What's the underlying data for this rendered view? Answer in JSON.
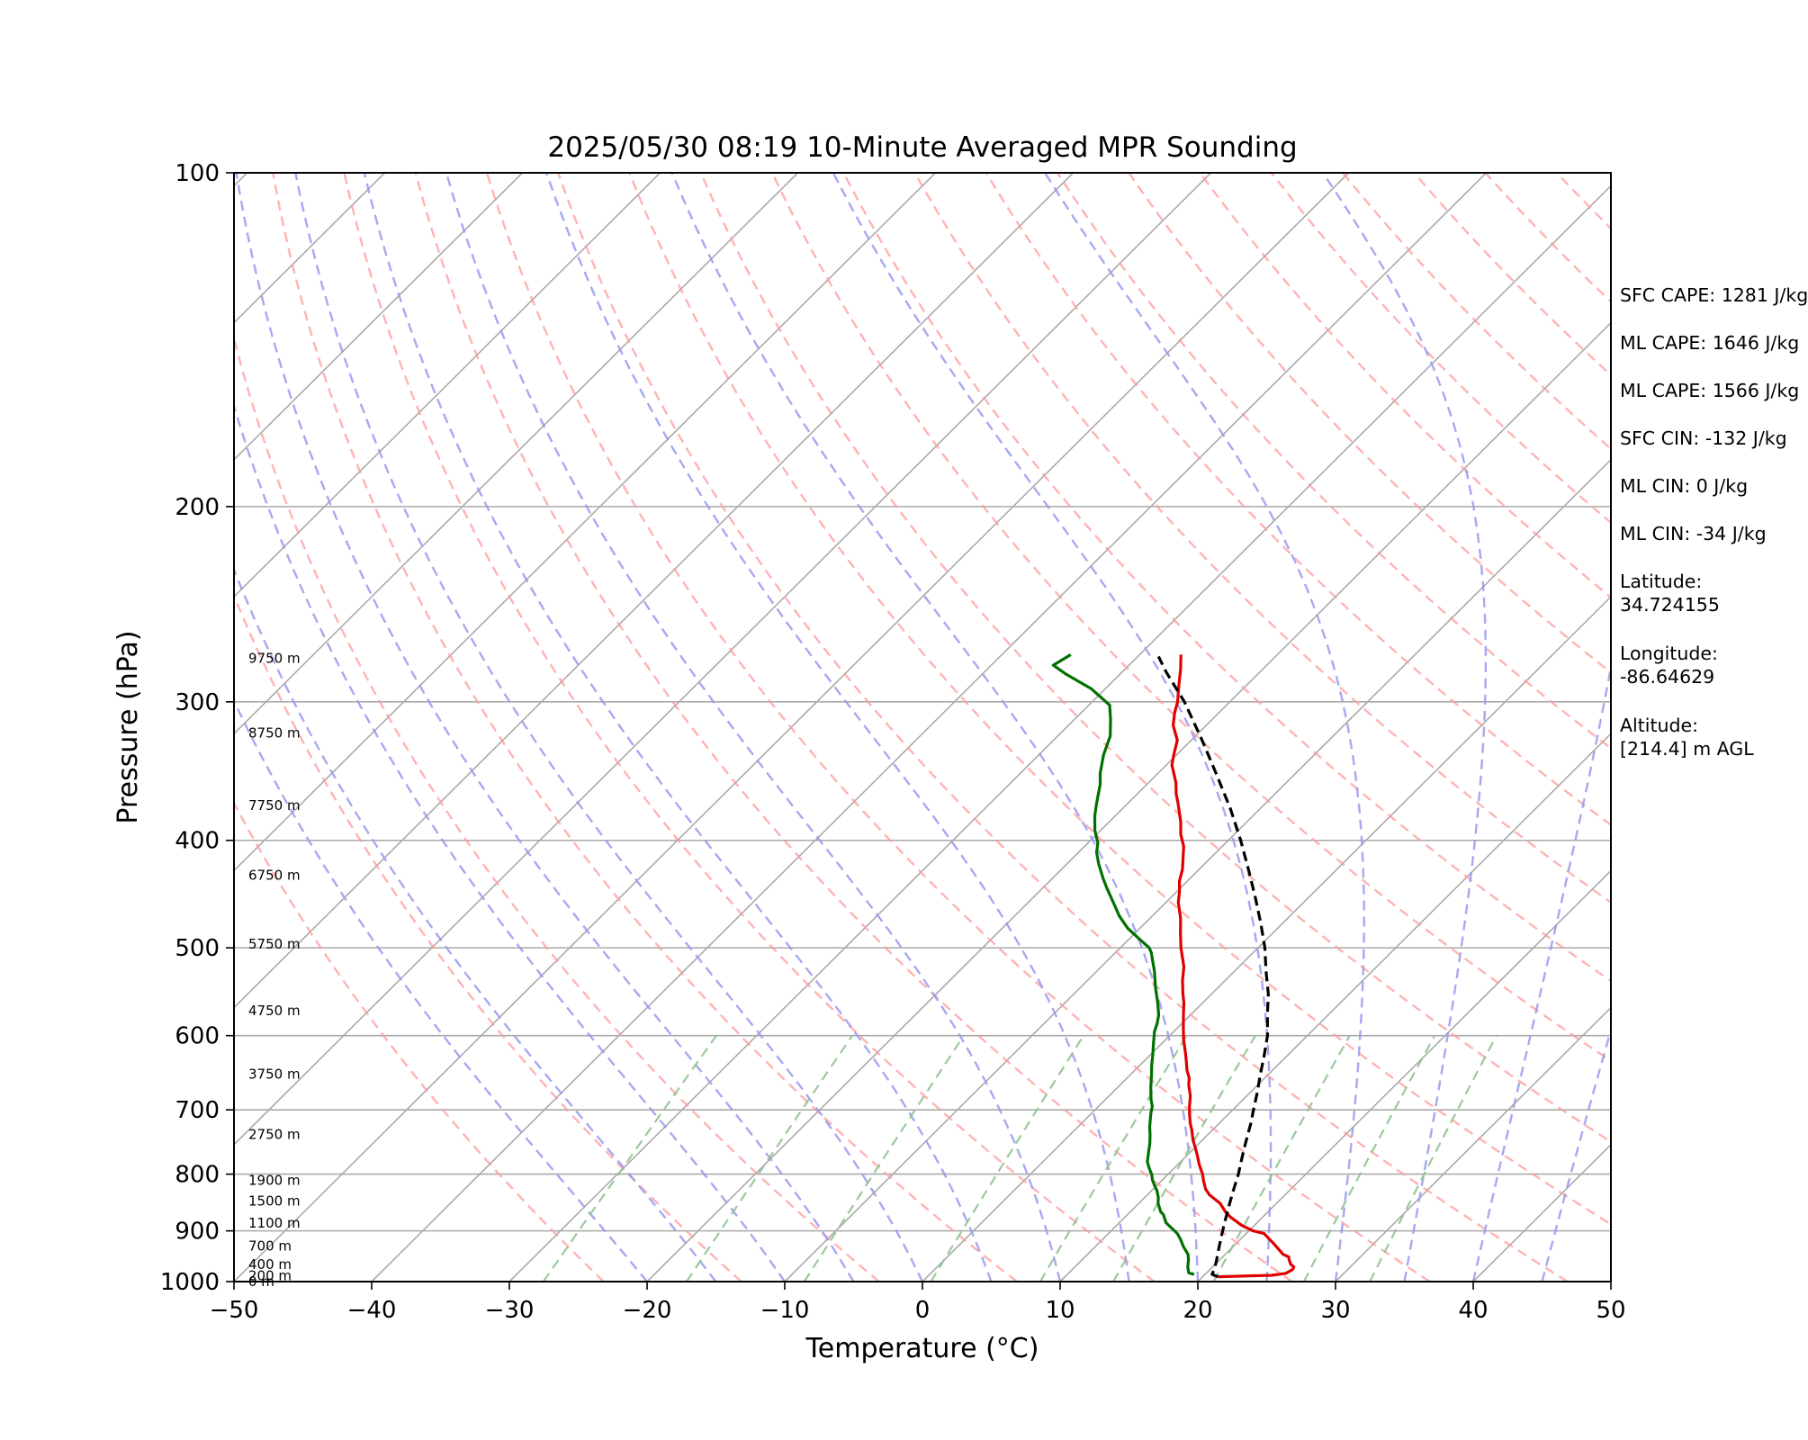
{
  "chart_data": {
    "type": "line",
    "title": "2025/05/30 08:19 10-Minute Averaged MPR Sounding",
    "xlabel": "Temperature (°C)",
    "ylabel": "Pressure (hPa)",
    "xlim": [
      -50,
      50
    ],
    "ylim": [
      1000,
      100
    ],
    "y_scale": "log",
    "grid": true,
    "x_ticks": [
      -50,
      -40,
      -30,
      -20,
      -10,
      0,
      10,
      20,
      30,
      40,
      50
    ],
    "y_ticks": [
      1000,
      900,
      800,
      700,
      600,
      500,
      400,
      300,
      200,
      100
    ],
    "height_labels": [
      {
        "p": 1000,
        "text": "0 m"
      },
      {
        "p": 988,
        "text": "200 m"
      },
      {
        "p": 965,
        "text": "400 m"
      },
      {
        "p": 929,
        "text": "700 m"
      },
      {
        "p": 886,
        "text": "1100 m"
      },
      {
        "p": 846,
        "text": "1500 m"
      },
      {
        "p": 810,
        "text": "1900 m"
      },
      {
        "p": 737,
        "text": "2750 m"
      },
      {
        "p": 650,
        "text": "3750 m"
      },
      {
        "p": 570,
        "text": "4750 m"
      },
      {
        "p": 496,
        "text": "5750 m"
      },
      {
        "p": 430,
        "text": "6750 m"
      },
      {
        "p": 372,
        "text": "7750 m"
      },
      {
        "p": 320,
        "text": "8750 m"
      },
      {
        "p": 274,
        "text": "9750 m"
      }
    ],
    "series": [
      {
        "color": "#e00000",
        "points": [
          [
            21.1,
            990
          ],
          [
            24.9,
            987
          ],
          [
            25.8,
            983
          ],
          [
            26.0,
            975
          ],
          [
            25.9,
            970
          ],
          [
            25.5,
            965
          ],
          [
            25.0,
            955
          ],
          [
            24.8,
            950
          ],
          [
            24.2,
            945
          ],
          [
            22.8,
            925
          ],
          [
            21.3,
            905
          ],
          [
            20.3,
            900
          ],
          [
            19.1,
            890
          ],
          [
            17.7,
            875
          ],
          [
            16.9,
            865
          ],
          [
            15.9,
            850
          ],
          [
            14.5,
            835
          ],
          [
            13.8,
            825
          ],
          [
            13.0,
            810
          ],
          [
            12.5,
            800
          ],
          [
            12.2,
            795
          ],
          [
            11.6,
            785
          ],
          [
            10.5,
            765
          ],
          [
            9.3,
            745
          ],
          [
            8.5,
            730
          ],
          [
            7.9,
            720
          ],
          [
            7.1,
            705
          ],
          [
            6.6,
            695
          ],
          [
            5.9,
            680
          ],
          [
            5.0,
            665
          ],
          [
            4.5,
            655
          ],
          [
            3.8,
            645
          ],
          [
            2.6,
            625
          ],
          [
            1.3,
            605
          ],
          [
            0.4,
            590
          ],
          [
            -0.5,
            575
          ],
          [
            -1.4,
            560
          ],
          [
            -2.1,
            550
          ],
          [
            -3.1,
            535
          ],
          [
            -4.0,
            520
          ],
          [
            -5.6,
            500
          ],
          [
            -6.7,
            485
          ],
          [
            -7.8,
            470
          ],
          [
            -9.1,
            455
          ],
          [
            -9.8,
            445
          ],
          [
            -10.6,
            435
          ],
          [
            -11.2,
            425
          ],
          [
            -12.8,
            405
          ],
          [
            -13.9,
            395
          ],
          [
            -14.8,
            385
          ],
          [
            -16.4,
            370
          ],
          [
            -17.2,
            363
          ],
          [
            -18.0,
            355
          ],
          [
            -19.6,
            342
          ],
          [
            -20.2,
            335
          ],
          [
            -21.0,
            325
          ],
          [
            -22.4,
            315
          ],
          [
            -23.2,
            307
          ],
          [
            -23.8,
            300
          ],
          [
            -24.9,
            290
          ],
          [
            -26.0,
            280
          ],
          [
            -27.0,
            272
          ]
        ]
      },
      {
        "color": "#007000",
        "points": [
          [
            19.2,
            985
          ],
          [
            18.7,
            982
          ],
          [
            18.2,
            970
          ],
          [
            17.7,
            955
          ],
          [
            17.3,
            945
          ],
          [
            16.4,
            930
          ],
          [
            15.6,
            915
          ],
          [
            15.0,
            905
          ],
          [
            14.6,
            900
          ],
          [
            13.8,
            890
          ],
          [
            13.4,
            885
          ],
          [
            12.6,
            870
          ],
          [
            12.2,
            865
          ],
          [
            11.4,
            850
          ],
          [
            11.0,
            840
          ],
          [
            10.4,
            828
          ],
          [
            9.9,
            820
          ],
          [
            9.3,
            810
          ],
          [
            8.8,
            800
          ],
          [
            8.3,
            792
          ],
          [
            7.6,
            780
          ],
          [
            7.0,
            765
          ],
          [
            6.4,
            750
          ],
          [
            5.8,
            737
          ],
          [
            5.2,
            725
          ],
          [
            4.3,
            705
          ],
          [
            3.9,
            695
          ],
          [
            3.3,
            685
          ],
          [
            2.4,
            668
          ],
          [
            1.6,
            652
          ],
          [
            0.8,
            637
          ],
          [
            0.2,
            625
          ],
          [
            -0.6,
            610
          ],
          [
            -1.4,
            595
          ],
          [
            -1.8,
            585
          ],
          [
            -2.3,
            575
          ],
          [
            -3.3,
            560
          ],
          [
            -4.4,
            545
          ],
          [
            -5.1,
            535
          ],
          [
            -5.8,
            525
          ],
          [
            -6.6,
            515
          ],
          [
            -7.4,
            505
          ],
          [
            -7.9,
            500
          ],
          [
            -9.4,
            490
          ],
          [
            -10.9,
            480
          ],
          [
            -12.4,
            468
          ],
          [
            -13.6,
            457
          ],
          [
            -15.3,
            442
          ],
          [
            -16.3,
            433
          ],
          [
            -17.7,
            420
          ],
          [
            -18.7,
            410
          ],
          [
            -19.3,
            402
          ],
          [
            -20.4,
            392
          ],
          [
            -21.5,
            380
          ],
          [
            -22.3,
            370
          ],
          [
            -23.4,
            356
          ],
          [
            -24.2,
            348
          ],
          [
            -25.3,
            335
          ],
          [
            -26.2,
            322
          ],
          [
            -27.4,
            311
          ],
          [
            -28.5,
            302
          ],
          [
            -31.0,
            292
          ],
          [
            -34.0,
            283
          ],
          [
            -35.5,
            278
          ],
          [
            -35.0,
            272
          ]
        ]
      },
      {
        "color": "#000000",
        "dashed": true,
        "points": [
          [
            21.1,
            990
          ],
          [
            20.5,
            985
          ],
          [
            20.3,
            975
          ],
          [
            19.9,
            960
          ],
          [
            19.6,
            950
          ],
          [
            19.3,
            940
          ],
          [
            19.0,
            930
          ],
          [
            18.7,
            920
          ],
          [
            18.4,
            910
          ],
          [
            18.1,
            900
          ],
          [
            17.8,
            890
          ],
          [
            17.5,
            880
          ],
          [
            17.2,
            870
          ],
          [
            16.9,
            860
          ],
          [
            16.6,
            850
          ],
          [
            16.3,
            840
          ],
          [
            16.0,
            830
          ],
          [
            15.7,
            820
          ],
          [
            15.4,
            810
          ],
          [
            15.1,
            800
          ],
          [
            14.4,
            780
          ],
          [
            13.7,
            760
          ],
          [
            13.0,
            740
          ],
          [
            12.3,
            720
          ],
          [
            11.5,
            700
          ],
          [
            10.5,
            675
          ],
          [
            9.4,
            650
          ],
          [
            8.3,
            625
          ],
          [
            7.1,
            600
          ],
          [
            5.6,
            575
          ],
          [
            4.1,
            550
          ],
          [
            2.3,
            525
          ],
          [
            0.5,
            500
          ],
          [
            -1.6,
            475
          ],
          [
            -3.9,
            450
          ],
          [
            -6.4,
            425
          ],
          [
            -9.1,
            400
          ],
          [
            -12.1,
            375
          ],
          [
            -15.5,
            350
          ],
          [
            -19.2,
            325
          ],
          [
            -23.3,
            300
          ],
          [
            -26.8,
            282
          ],
          [
            -28.5,
            273
          ]
        ]
      }
    ]
  },
  "annotations": {
    "sfc_cape": "SFC CAPE: 1281 J/kg",
    "ml_cape_1": "ML CAPE: 1646 J/kg",
    "ml_cape_2": "ML CAPE: 1566 J/kg",
    "sfc_cin": "SFC CIN: -132 J/kg",
    "ml_cin_1": "ML CIN: 0 J/kg",
    "ml_cin_2": "ML CIN: -34 J/kg",
    "latitude": "Latitude:\n34.724155",
    "longitude": "Longitude:\n-86.64629",
    "altitude": "Altitude:\n[214.4] m AGL"
  },
  "colors": {
    "isotherm": "#aaaaaa",
    "dry_adiabat": "#ff9a9a",
    "moist_adiabat": "#9999ee",
    "mixing_ratio": "#8fc48f"
  }
}
